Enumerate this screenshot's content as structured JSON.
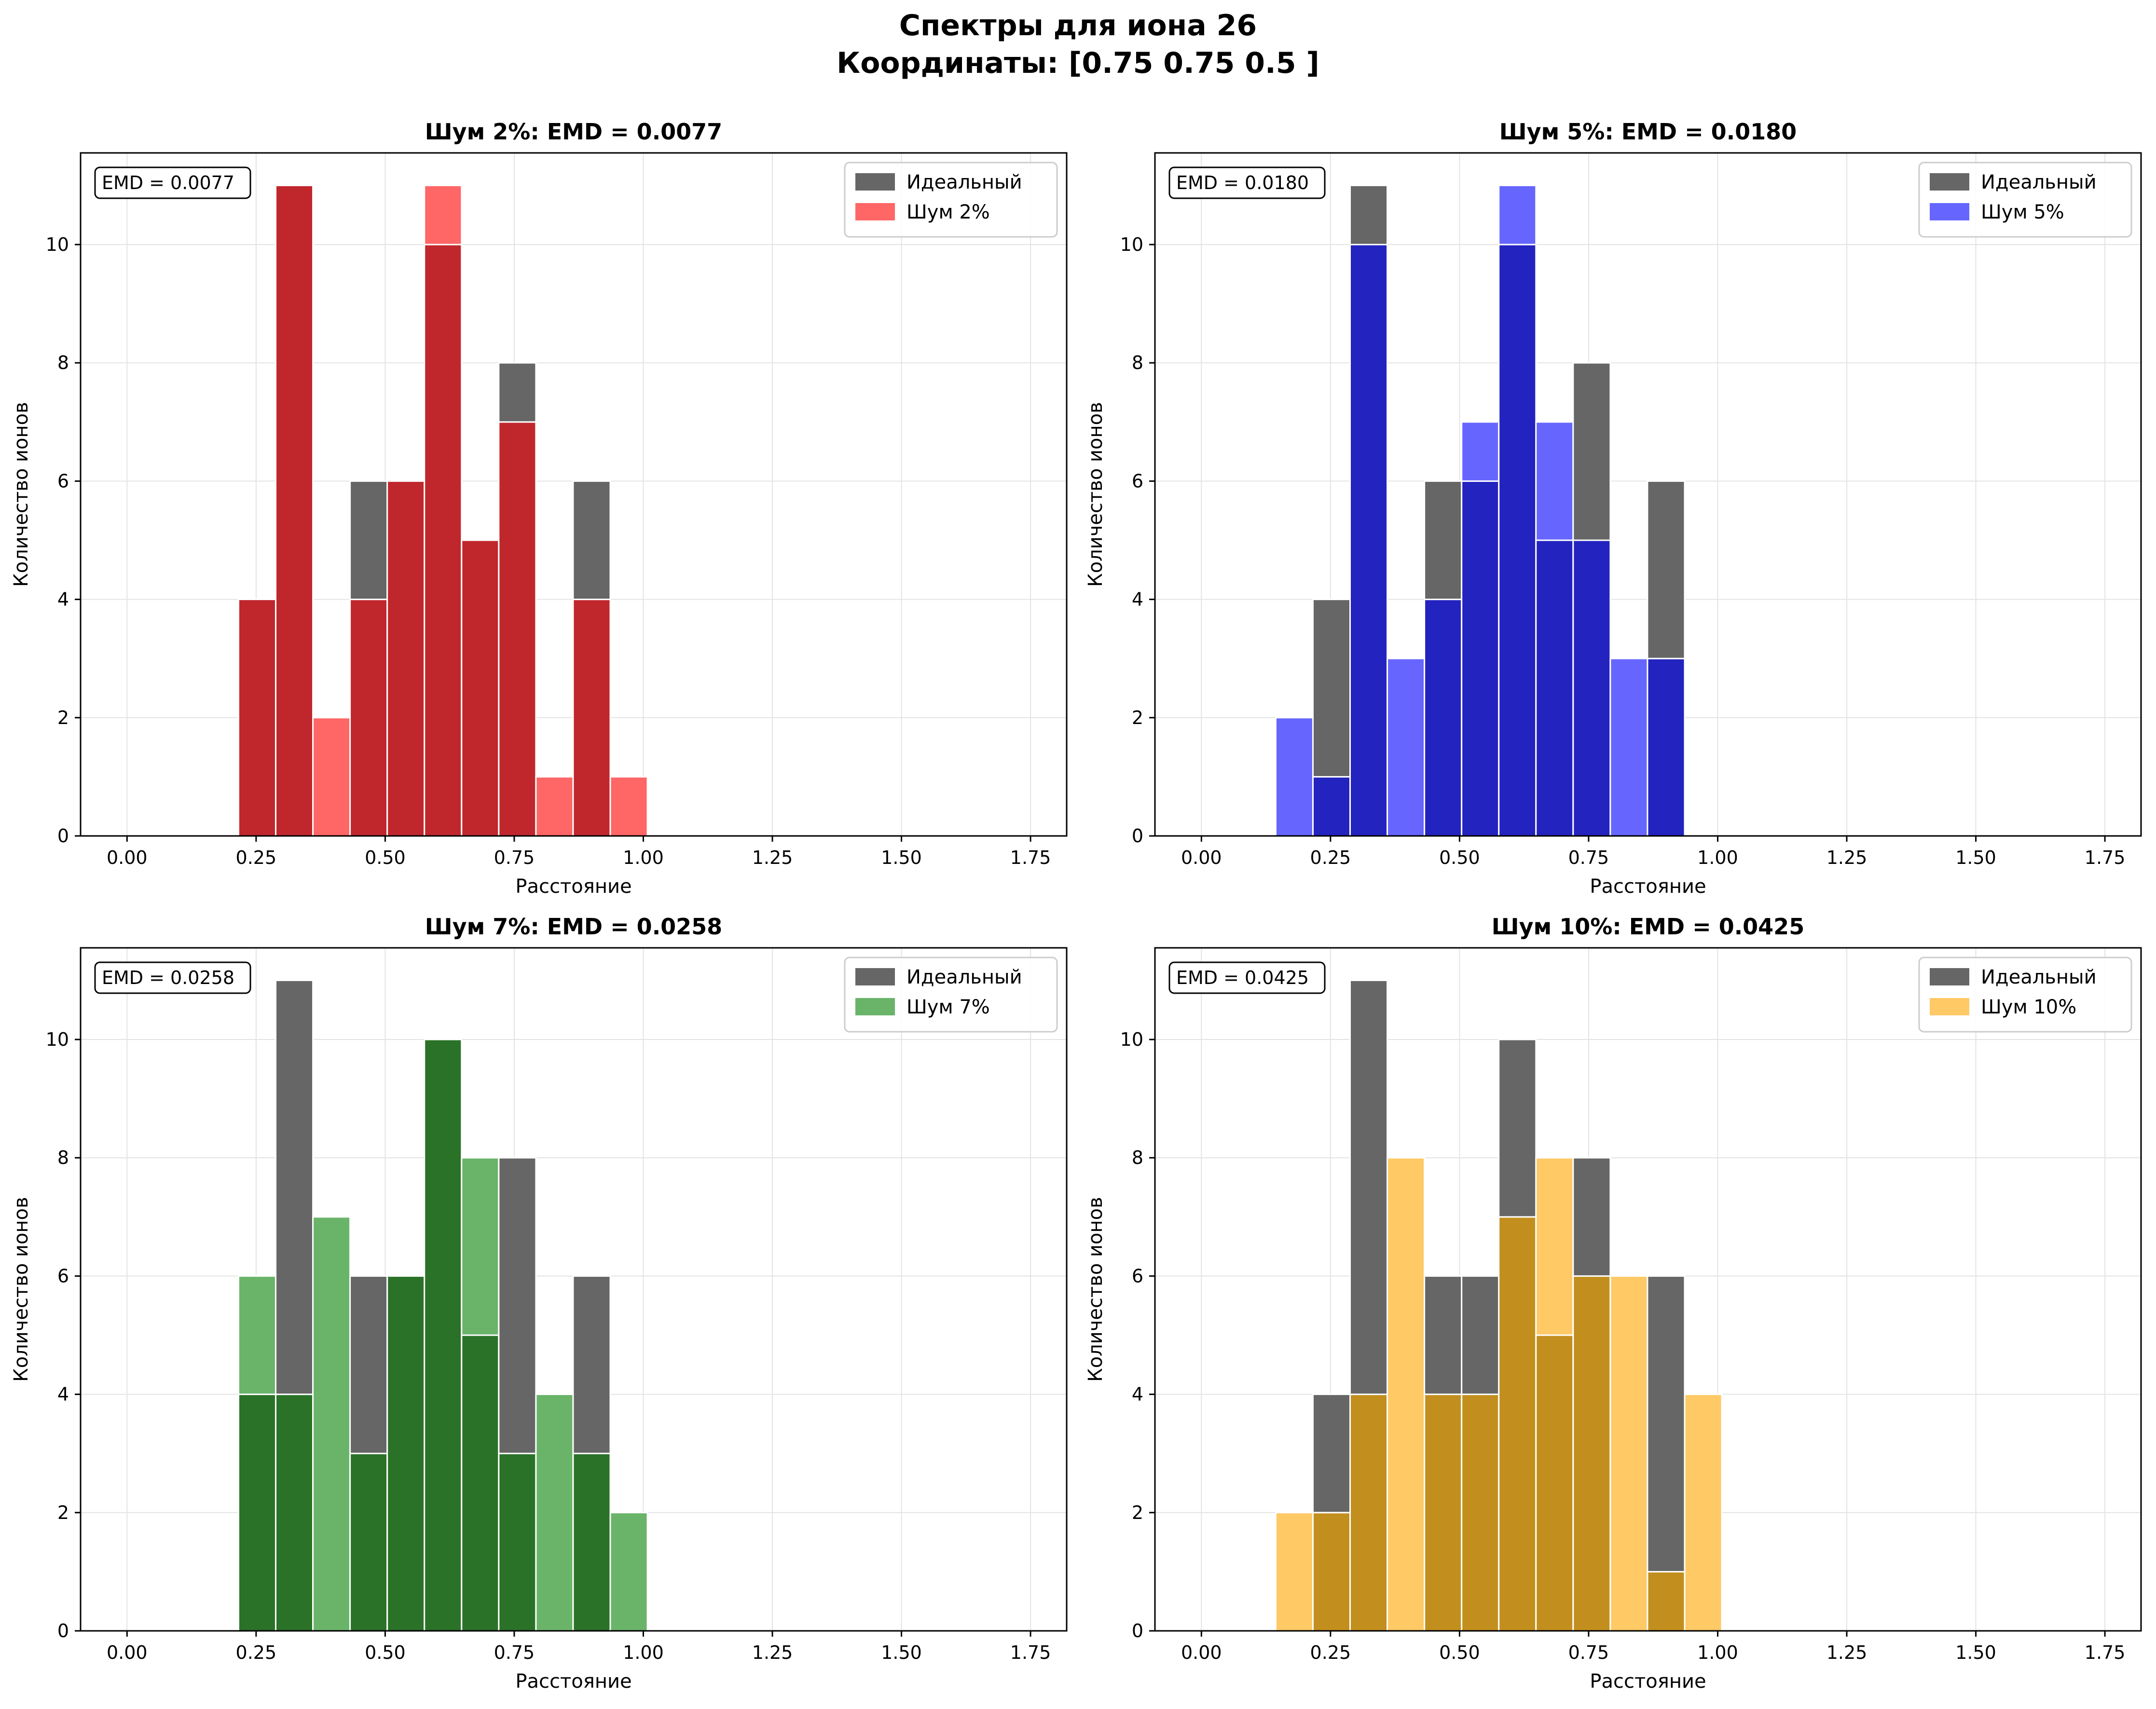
{
  "suptitle": {
    "line1": "Спектры для иона 26",
    "line2": "Координаты: [0.75 0.75 0.5 ]"
  },
  "colors": {
    "ideal": "#666666",
    "noise_2": "#ff6666",
    "noise_5": "#6666ff",
    "noise_7": "#6ab46a",
    "noise_10": "#ffc966",
    "overlap_2": "#c0272d",
    "overlap_5": "#2323c0",
    "overlap_7": "#2a7228",
    "overlap_10": "#c28f1e"
  },
  "chart_data": [
    {
      "type": "bar",
      "title": "Шум 2%: EMD = 0.0077",
      "annotation": "EMD = 0.0077",
      "xlabel": "Расстояние",
      "ylabel": "Количество ионов",
      "xlim": [
        -0.09,
        1.82
      ],
      "ylim": [
        0,
        11.55
      ],
      "xticks": [
        "0.00",
        "0.25",
        "0.50",
        "0.75",
        "1.00",
        "1.25",
        "1.50",
        "1.75"
      ],
      "yticks": [
        "0",
        "2",
        "4",
        "6",
        "8",
        "10"
      ],
      "grid": true,
      "legend_position": "top-right",
      "bin_width": 0.072,
      "bin_starts": [
        0.216,
        0.288,
        0.36,
        0.432,
        0.504,
        0.576,
        0.648,
        0.72,
        0.792,
        0.864,
        0.936
      ],
      "series": [
        {
          "name": "Идеальный",
          "color_key": "ideal",
          "values": [
            4,
            11,
            0,
            6,
            6,
            10,
            5,
            8,
            0,
            6,
            0
          ]
        },
        {
          "name": "Шум 2%",
          "color_key": "noise_2",
          "overlap_key": "overlap_2",
          "values": [
            4,
            11,
            2,
            4,
            6,
            11,
            5,
            7,
            1,
            4,
            1
          ]
        }
      ]
    },
    {
      "type": "bar",
      "title": "Шум 5%: EMD = 0.0180",
      "annotation": "EMD = 0.0180",
      "xlabel": "Расстояние",
      "ylabel": "Количество ионов",
      "xlim": [
        -0.09,
        1.82
      ],
      "ylim": [
        0,
        11.55
      ],
      "xticks": [
        "0.00",
        "0.25",
        "0.50",
        "0.75",
        "1.00",
        "1.25",
        "1.50",
        "1.75"
      ],
      "yticks": [
        "0",
        "2",
        "4",
        "6",
        "8",
        "10"
      ],
      "grid": true,
      "legend_position": "top-right",
      "bin_width": 0.072,
      "bin_starts": [
        0.144,
        0.216,
        0.288,
        0.36,
        0.432,
        0.504,
        0.576,
        0.648,
        0.72,
        0.792,
        0.864
      ],
      "series": [
        {
          "name": "Идеальный",
          "color_key": "ideal",
          "values": [
            0,
            4,
            11,
            0,
            6,
            6,
            10,
            5,
            8,
            0,
            6
          ]
        },
        {
          "name": "Шум 5%",
          "color_key": "noise_5",
          "overlap_key": "overlap_5",
          "values": [
            2,
            1,
            10,
            3,
            4,
            7,
            11,
            7,
            5,
            3,
            3
          ]
        }
      ]
    },
    {
      "type": "bar",
      "title": "Шум 7%: EMD = 0.0258",
      "annotation": "EMD = 0.0258",
      "xlabel": "Расстояние",
      "ylabel": "Количество ионов",
      "xlim": [
        -0.09,
        1.82
      ],
      "ylim": [
        0,
        11.55
      ],
      "xticks": [
        "0.00",
        "0.25",
        "0.50",
        "0.75",
        "1.00",
        "1.25",
        "1.50",
        "1.75"
      ],
      "yticks": [
        "0",
        "2",
        "4",
        "6",
        "8",
        "10"
      ],
      "grid": true,
      "legend_position": "top-right",
      "bin_width": 0.072,
      "bin_starts": [
        0.216,
        0.288,
        0.36,
        0.432,
        0.504,
        0.576,
        0.648,
        0.72,
        0.792,
        0.864,
        0.936
      ],
      "series": [
        {
          "name": "Идеальный",
          "color_key": "ideal",
          "values": [
            4,
            11,
            0,
            6,
            6,
            10,
            5,
            8,
            0,
            6,
            0
          ]
        },
        {
          "name": "Шум 7%",
          "color_key": "noise_7",
          "overlap_key": "overlap_7",
          "values": [
            6,
            4,
            7,
            3,
            6,
            10,
            8,
            3,
            4,
            3,
            2
          ]
        }
      ]
    },
    {
      "type": "bar",
      "title": "Шум 10%: EMD = 0.0425",
      "annotation": "EMD = 0.0425",
      "xlabel": "Расстояние",
      "ylabel": "Количество ионов",
      "xlim": [
        -0.09,
        1.82
      ],
      "ylim": [
        0,
        11.55
      ],
      "xticks": [
        "0.00",
        "0.25",
        "0.50",
        "0.75",
        "1.00",
        "1.25",
        "1.50",
        "1.75"
      ],
      "yticks": [
        "0",
        "2",
        "4",
        "6",
        "8",
        "10"
      ],
      "grid": true,
      "legend_position": "top-right",
      "bin_width": 0.072,
      "bin_starts": [
        0.144,
        0.216,
        0.288,
        0.36,
        0.432,
        0.504,
        0.576,
        0.648,
        0.72,
        0.792,
        0.864,
        0.936
      ],
      "series": [
        {
          "name": "Идеальный",
          "color_key": "ideal",
          "values": [
            0,
            4,
            11,
            0,
            6,
            6,
            10,
            5,
            8,
            0,
            6,
            0
          ]
        },
        {
          "name": "Шум 10%",
          "color_key": "noise_10",
          "overlap_key": "overlap_10",
          "values": [
            2,
            2,
            4,
            8,
            4,
            4,
            7,
            8,
            6,
            6,
            1,
            4
          ]
        }
      ]
    }
  ]
}
